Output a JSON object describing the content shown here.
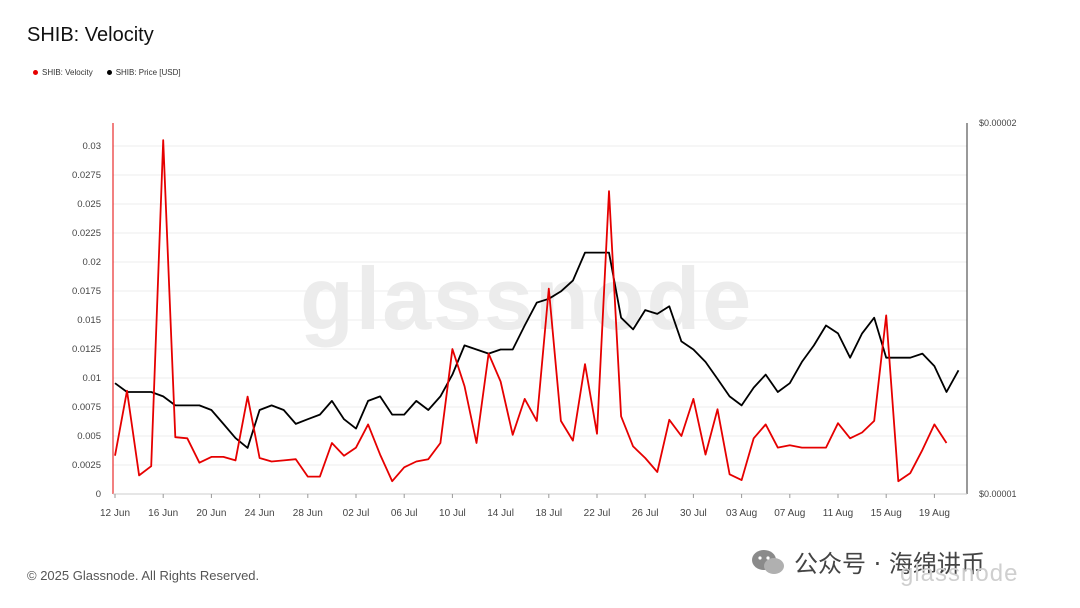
{
  "title": "SHIB: Velocity",
  "legend": [
    {
      "label": "SHIB: Velocity",
      "color": "#e60000"
    },
    {
      "label": "SHIB: Price [USD]",
      "color": "#000000"
    }
  ],
  "watermark": "glassnode",
  "footer": "© 2025 Glassnode. All Rights Reserved.",
  "social_watermark": {
    "text": "公众号 · 海绵讲币",
    "sub": "glassnode",
    "icon": "wechat-icon"
  },
  "chart_data": {
    "type": "line",
    "x_ticks": [
      "12 Jun",
      "16 Jun",
      "20 Jun",
      "24 Jun",
      "28 Jun",
      "02 Jul",
      "06 Jul",
      "10 Jul",
      "14 Jul",
      "18 Jul",
      "22 Jul",
      "26 Jul",
      "30 Jul",
      "03 Aug",
      "07 Aug",
      "11 Aug",
      "15 Aug",
      "19 Aug"
    ],
    "y_left": {
      "ticks": [
        "0",
        "0.0025",
        "0.005",
        "0.0075",
        "0.01",
        "0.0125",
        "0.015",
        "0.0175",
        "0.02",
        "0.0225",
        "0.025",
        "0.0275",
        "0.03"
      ],
      "range": [
        0,
        0.03
      ]
    },
    "y_right": {
      "ticks": [
        "$0.00001",
        "$0.00002"
      ],
      "scale": "log"
    },
    "grid": true,
    "series": [
      {
        "name": "SHIB: Velocity",
        "color": "#e60000",
        "axis": "left",
        "values": [
          0.0033,
          0.0089,
          0.0016,
          0.0024,
          0.0305,
          0.0049,
          0.0048,
          0.0027,
          0.0032,
          0.0032,
          0.0029,
          0.0084,
          0.0031,
          0.0028,
          0.0029,
          0.003,
          0.0015,
          0.0015,
          0.0044,
          0.0033,
          0.004,
          0.006,
          0.0034,
          0.0011,
          0.0023,
          0.0028,
          0.003,
          0.0044,
          0.0125,
          0.0093,
          0.0044,
          0.0121,
          0.0097,
          0.0051,
          0.0082,
          0.0063,
          0.0177,
          0.0063,
          0.0046,
          0.0112,
          0.0052,
          0.0261,
          0.0067,
          0.0041,
          0.0031,
          0.0019,
          0.0064,
          0.005,
          0.0082,
          0.0034,
          0.0073,
          0.0017,
          0.0012,
          0.0048,
          0.006,
          0.004,
          0.0042,
          0.004,
          0.004,
          0.004,
          0.0061,
          0.0048,
          0.0053,
          0.0063,
          0.0154,
          0.0011,
          0.0018,
          0.0038,
          0.006,
          0.0044
        ]
      },
      {
        "name": "SHIB: Price [USD]",
        "color": "#000000",
        "axis": "right",
        "values": [
          1.23e-05,
          1.21e-05,
          1.21e-05,
          1.21e-05,
          1.2e-05,
          1.18e-05,
          1.18e-05,
          1.18e-05,
          1.17e-05,
          1.14e-05,
          1.11e-05,
          1.09e-05,
          1.17e-05,
          1.18e-05,
          1.17e-05,
          1.14e-05,
          1.15e-05,
          1.16e-05,
          1.19e-05,
          1.15e-05,
          1.13e-05,
          1.19e-05,
          1.2e-05,
          1.16e-05,
          1.16e-05,
          1.19e-05,
          1.17e-05,
          1.2e-05,
          1.25e-05,
          1.32e-05,
          1.31e-05,
          1.3e-05,
          1.31e-05,
          1.31e-05,
          1.37e-05,
          1.43e-05,
          1.44e-05,
          1.46e-05,
          1.49e-05,
          1.57e-05,
          1.57e-05,
          1.57e-05,
          1.39e-05,
          1.36e-05,
          1.41e-05,
          1.4e-05,
          1.42e-05,
          1.33e-05,
          1.31e-05,
          1.28e-05,
          1.24e-05,
          1.2e-05,
          1.18e-05,
          1.22e-05,
          1.25e-05,
          1.21e-05,
          1.23e-05,
          1.28e-05,
          1.32e-05,
          1.37e-05,
          1.35e-05,
          1.29e-05,
          1.35e-05,
          1.39e-05,
          1.29e-05,
          1.29e-05,
          1.29e-05,
          1.3e-05,
          1.27e-05,
          1.21e-05,
          1.26e-05
        ]
      }
    ]
  }
}
